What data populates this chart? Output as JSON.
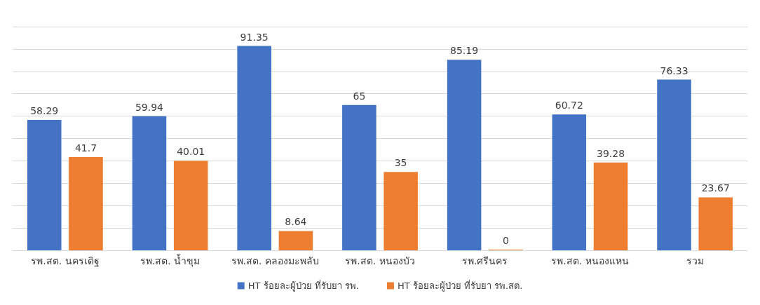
{
  "chart_data": {
    "type": "bar",
    "categories": [
      "รพ.สต. นครเดิฐ",
      "รพ.สต. น้ำขุม",
      "รพ.สต. คลองมะพลับ",
      "รพ.สต. หนองบัว",
      "รพ.ศรีนคร",
      "รพ.สต. หนองแหน",
      "รวม"
    ],
    "series": [
      {
        "name": "HT ร้อยละผู้ป่วย ที่รับยา รพ.",
        "color": "#4472c4",
        "values": [
          58.29,
          59.94,
          91.35,
          65,
          85.19,
          60.72,
          76.33
        ]
      },
      {
        "name": "HT ร้อยละผู้ป่วย ที่รับยา รพ.สต.",
        "color": "#ed7d31",
        "values": [
          41.7,
          40.01,
          8.64,
          35,
          0,
          39.28,
          23.67
        ]
      }
    ],
    "tick_labels": "x",
    "grid": "y",
    "legend": "bottom",
    "data_labels": true
  }
}
